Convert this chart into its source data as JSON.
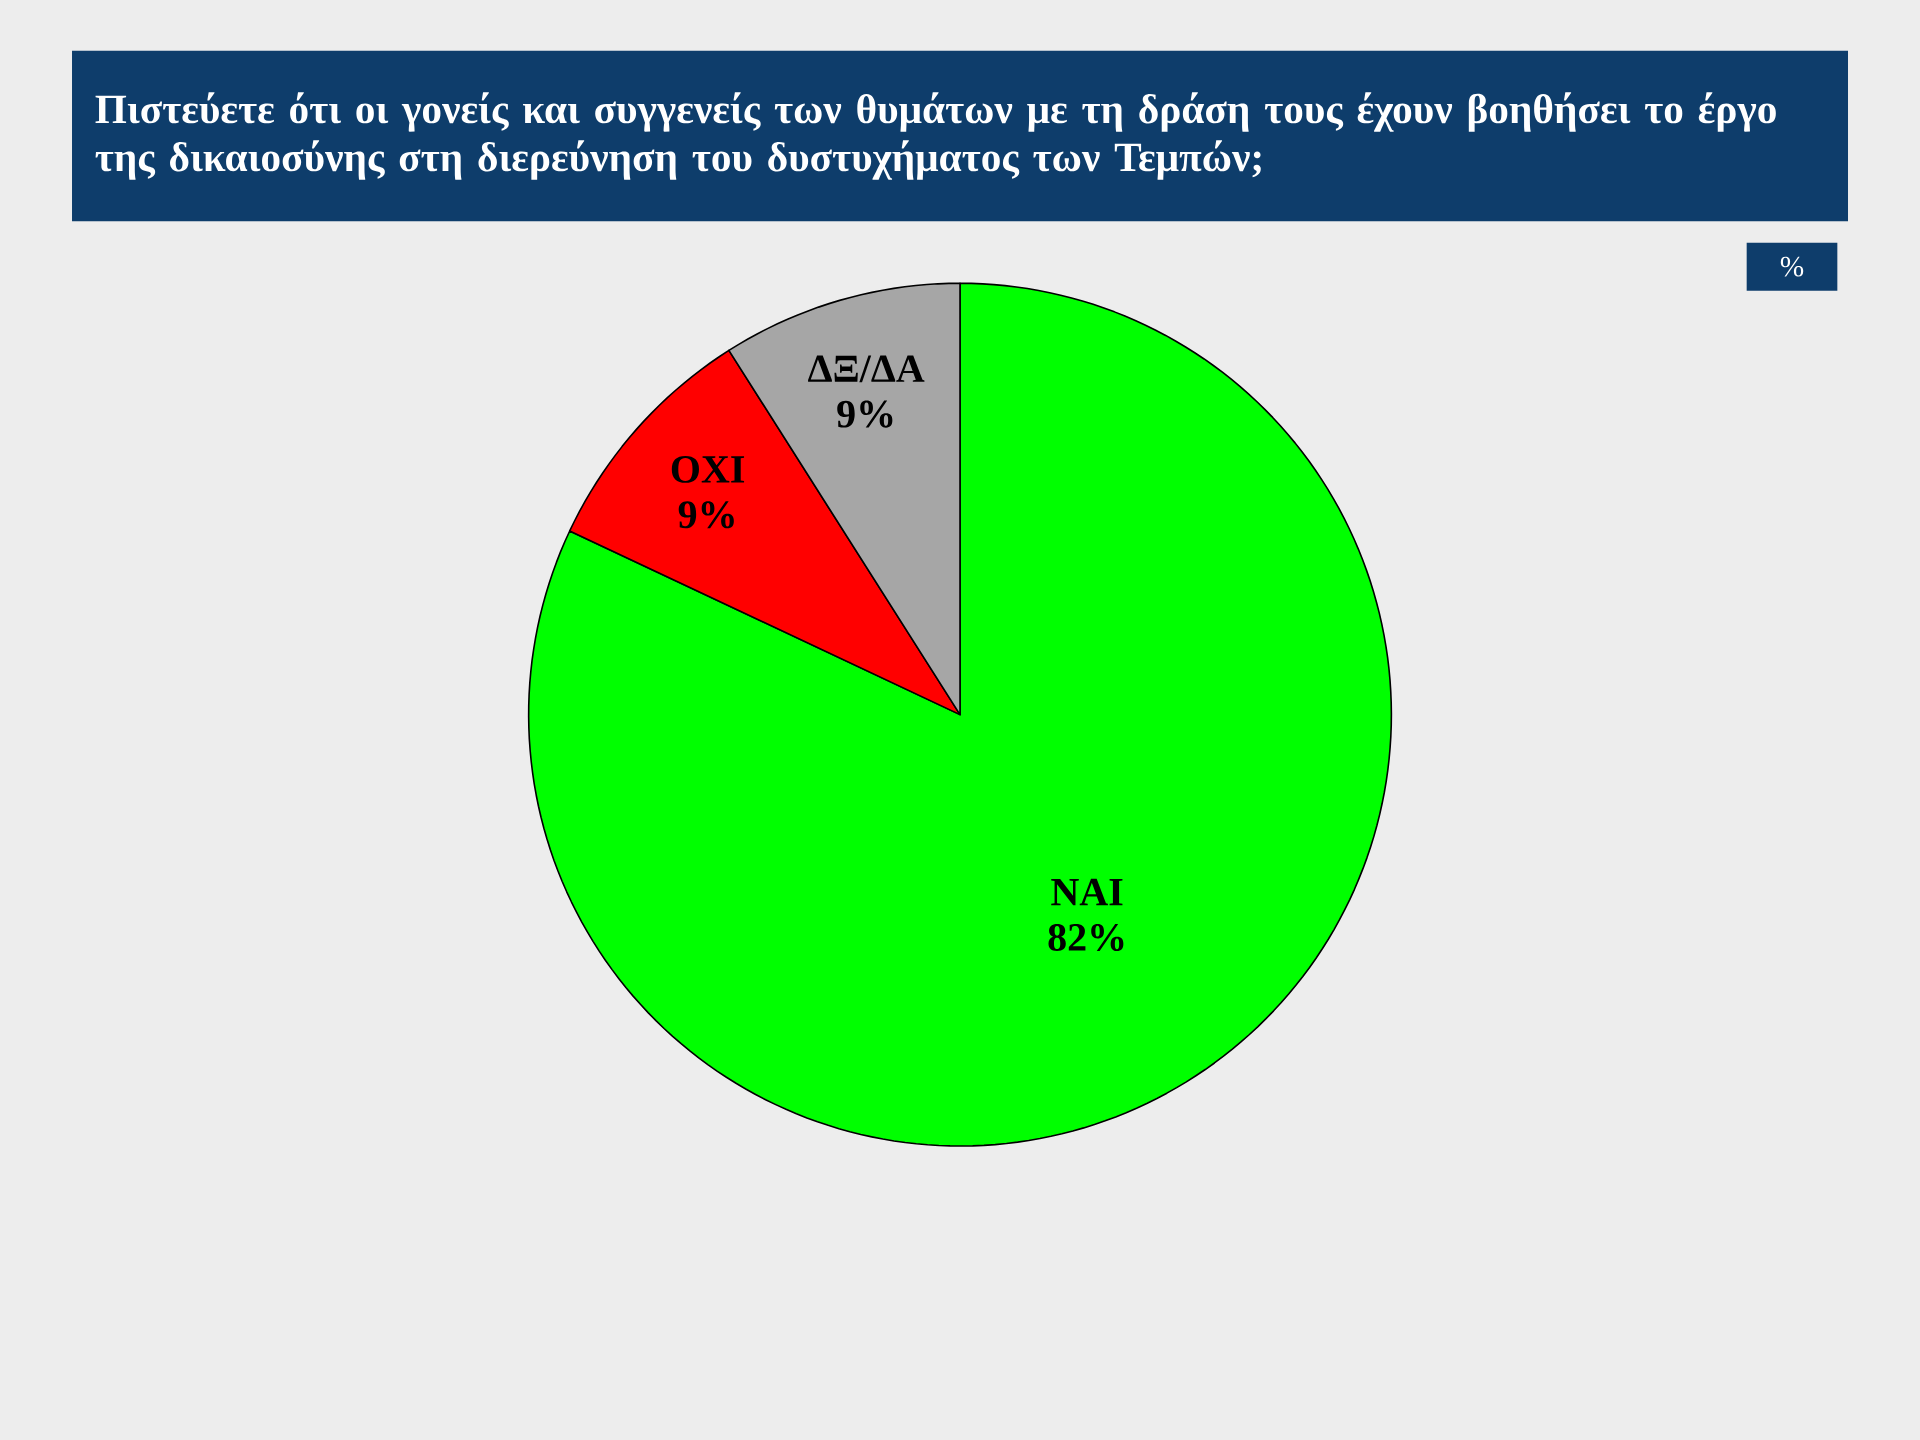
{
  "chart_data": {
    "type": "pie",
    "title": "Πιστεύετε ότι οι γονείς και συγγενείς των θυμάτων  με τη δράση τους έχουν βοηθήσει το έργο της δικαιοσύνης στη διερεύνηση του δυστυχήματος των Τεμπών;",
    "categories": [
      "ΝΑΙ",
      "ΟΧΙ",
      "ΔΞ/ΔΑ"
    ],
    "values": [
      82,
      9,
      9
    ],
    "value_labels": [
      "82%",
      "9%",
      "9%"
    ],
    "colors": [
      "#00ff00",
      "#ff0000",
      "#a6a6a6"
    ],
    "annotations": [
      "%"
    ]
  }
}
